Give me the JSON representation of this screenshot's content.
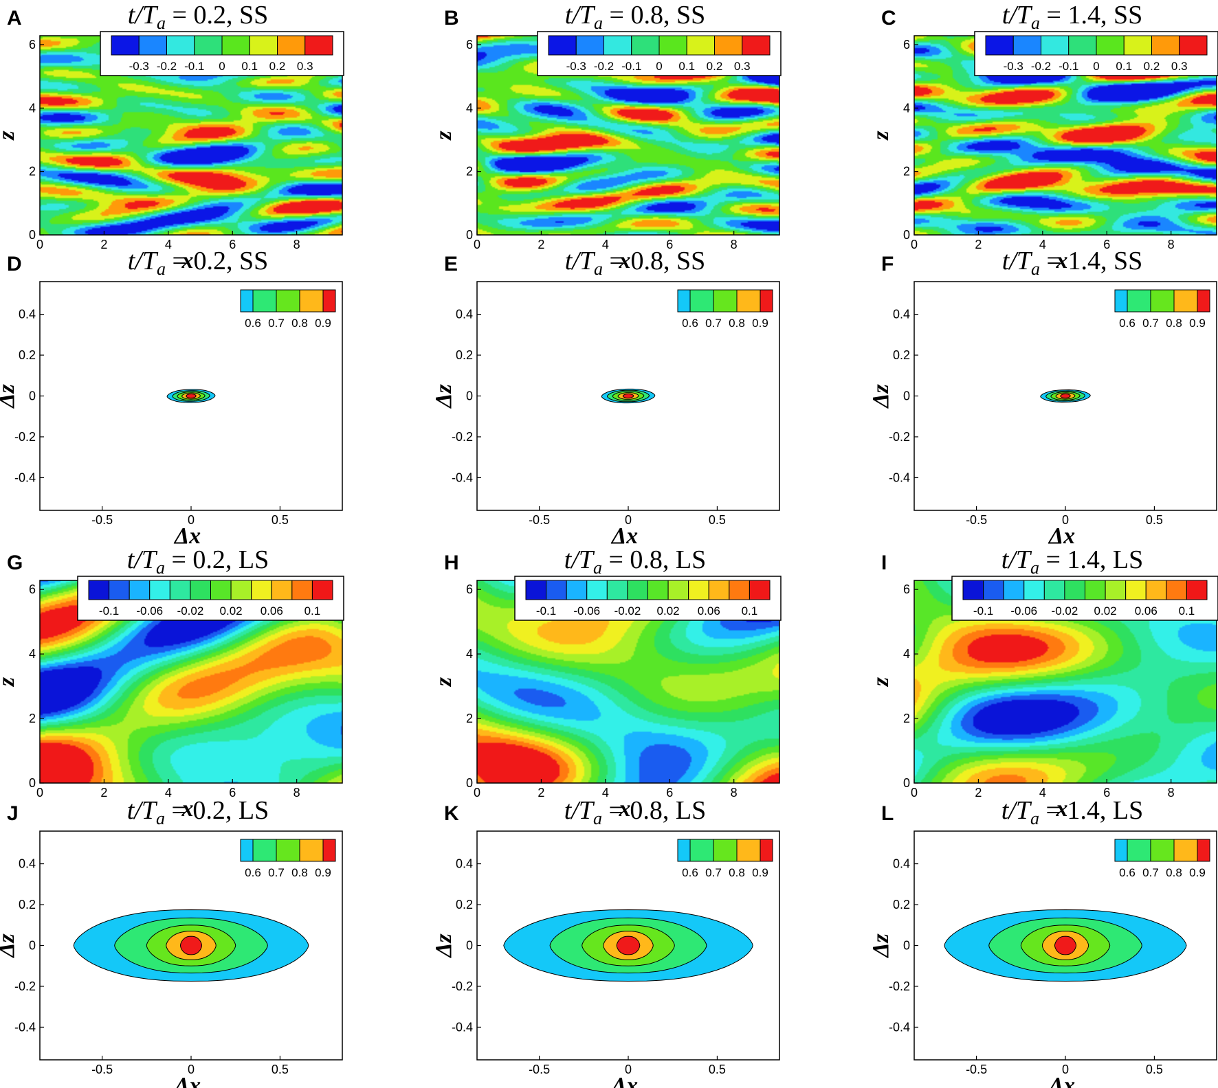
{
  "figure": {
    "panel_count": 12,
    "layout": "4 rows x 3 columns"
  },
  "colors": {
    "ss_levels": [
      "#0b16e6",
      "#1a86ff",
      "#33e8e0",
      "#2ee07a",
      "#5ae61e",
      "#d8f21a",
      "#ff9a0a",
      "#f01a1a"
    ],
    "ls_levels": [
      "#0a14d8",
      "#1a5cf0",
      "#1ab4ff",
      "#33f0e8",
      "#2ee8a0",
      "#2ee060",
      "#58e628",
      "#a8f028",
      "#f0f020",
      "#ffb81a",
      "#ff7a10",
      "#f01818"
    ],
    "corr_levels": [
      "#14c8f8",
      "#2ee874",
      "#66e61e",
      "#ffb81a",
      "#f01a1a"
    ]
  },
  "chart_data": [
    {
      "panel": "A",
      "type": "heatmap",
      "title": "t/Ta = 0.2, SS",
      "title_parts": {
        "prefix": "t/T",
        "sub": "a",
        "suffix": " = 0.2, SS"
      },
      "xlabel": "x",
      "ylabel": "z",
      "xlim": [
        0,
        9.42
      ],
      "ylim": [
        0,
        6.28
      ],
      "xticks": [
        "0",
        "2",
        "4",
        "6",
        "8"
      ],
      "yticks": [
        "0",
        "2",
        "4",
        "6"
      ],
      "colorbar": {
        "labels": [
          "-0.3",
          "-0.2",
          "-0.1",
          "0",
          "0.1",
          "0.2",
          "0.3"
        ],
        "levels": 8
      },
      "field": "small-scale streaks",
      "scale": "SS"
    },
    {
      "panel": "B",
      "type": "heatmap",
      "title": "t/Ta = 0.8, SS",
      "title_parts": {
        "prefix": "t/T",
        "sub": "a",
        "suffix": " = 0.8, SS"
      },
      "xlabel": "x",
      "ylabel": "z",
      "xlim": [
        0,
        9.42
      ],
      "ylim": [
        0,
        6.28
      ],
      "xticks": [
        "0",
        "2",
        "4",
        "6",
        "8"
      ],
      "yticks": [
        "0",
        "2",
        "4",
        "6"
      ],
      "colorbar": {
        "labels": [
          "-0.3",
          "-0.2",
          "-0.1",
          "0",
          "0.1",
          "0.2",
          "0.3"
        ],
        "levels": 8
      },
      "field": "small-scale streaks",
      "scale": "SS"
    },
    {
      "panel": "C",
      "type": "heatmap",
      "title": "t/Ta = 1.4, SS",
      "title_parts": {
        "prefix": "t/T",
        "sub": "a",
        "suffix": " = 1.4, SS"
      },
      "xlabel": "x",
      "ylabel": "z",
      "xlim": [
        0,
        9.42
      ],
      "ylim": [
        0,
        6.28
      ],
      "xticks": [
        "0",
        "2",
        "4",
        "6",
        "8"
      ],
      "yticks": [
        "0",
        "2",
        "4",
        "6"
      ],
      "colorbar": {
        "labels": [
          "-0.3",
          "-0.2",
          "-0.1",
          "0",
          "0.1",
          "0.2",
          "0.3"
        ],
        "levels": 8
      },
      "field": "small-scale streaks",
      "scale": "SS"
    },
    {
      "panel": "D",
      "type": "heatmap",
      "title": "t/Ta = 0.2, SS",
      "title_parts": {
        "prefix": "t/T",
        "sub": "a",
        "suffix": " = 0.2, SS"
      },
      "xlabel": "Δx",
      "ylabel": "Δz",
      "xlim": [
        -0.85,
        0.85
      ],
      "ylim": [
        -0.56,
        0.56
      ],
      "xticks": [
        "-0.5",
        "0",
        "0.5"
      ],
      "yticks": [
        "-0.4",
        "-0.2",
        "0",
        "0.2",
        "0.4"
      ],
      "colorbar": {
        "labels": [
          "0.6",
          "0.7",
          "0.8",
          "0.9"
        ],
        "levels": 5
      },
      "contours": [
        {
          "level": 0.5,
          "rx": 0.135,
          "rz": 0.032,
          "skew": 0.06
        },
        {
          "level": 0.6,
          "rx": 0.105,
          "rz": 0.026,
          "skew": 0.06
        },
        {
          "level": 0.7,
          "rx": 0.078,
          "rz": 0.02,
          "skew": 0.06
        },
        {
          "level": 0.8,
          "rx": 0.052,
          "rz": 0.015,
          "skew": 0.06
        },
        {
          "level": 0.9,
          "rx": 0.028,
          "rz": 0.01,
          "skew": 0.06
        }
      ]
    },
    {
      "panel": "E",
      "type": "heatmap",
      "title": "t/Ta = 0.8, SS",
      "title_parts": {
        "prefix": "t/T",
        "sub": "a",
        "suffix": " = 0.8, SS"
      },
      "xlabel": "Δx",
      "ylabel": "Δz",
      "xlim": [
        -0.85,
        0.85
      ],
      "ylim": [
        -0.56,
        0.56
      ],
      "xticks": [
        "-0.5",
        "0",
        "0.5"
      ],
      "yticks": [
        "-0.4",
        "-0.2",
        "0",
        "0.2",
        "0.4"
      ],
      "colorbar": {
        "labels": [
          "0.6",
          "0.7",
          "0.8",
          "0.9"
        ],
        "levels": 5
      },
      "contours": [
        {
          "level": 0.5,
          "rx": 0.15,
          "rz": 0.034,
          "skew": 0.06
        },
        {
          "level": 0.6,
          "rx": 0.118,
          "rz": 0.028,
          "skew": 0.06
        },
        {
          "level": 0.7,
          "rx": 0.088,
          "rz": 0.022,
          "skew": 0.06
        },
        {
          "level": 0.8,
          "rx": 0.058,
          "rz": 0.016,
          "skew": 0.06
        },
        {
          "level": 0.9,
          "rx": 0.03,
          "rz": 0.01,
          "skew": 0.06
        }
      ]
    },
    {
      "panel": "F",
      "type": "heatmap",
      "title": "t/Ta = 1.4, SS",
      "title_parts": {
        "prefix": "t/T",
        "sub": "a",
        "suffix": " = 1.4, SS"
      },
      "xlabel": "Δx",
      "ylabel": "Δz",
      "xlim": [
        -0.85,
        0.85
      ],
      "ylim": [
        -0.56,
        0.56
      ],
      "xticks": [
        "-0.5",
        "0",
        "0.5"
      ],
      "yticks": [
        "-0.4",
        "-0.2",
        "0",
        "0.2",
        "0.4"
      ],
      "colorbar": {
        "labels": [
          "0.6",
          "0.7",
          "0.8",
          "0.9"
        ],
        "levels": 5
      },
      "contours": [
        {
          "level": 0.5,
          "rx": 0.14,
          "rz": 0.03,
          "skew": 0.07
        },
        {
          "level": 0.6,
          "rx": 0.11,
          "rz": 0.025,
          "skew": 0.07
        },
        {
          "level": 0.7,
          "rx": 0.082,
          "rz": 0.02,
          "skew": 0.07
        },
        {
          "level": 0.8,
          "rx": 0.054,
          "rz": 0.015,
          "skew": 0.07
        },
        {
          "level": 0.9,
          "rx": 0.028,
          "rz": 0.01,
          "skew": 0.07
        }
      ]
    },
    {
      "panel": "G",
      "type": "heatmap",
      "title": "t/Ta = 0.2, LS",
      "title_parts": {
        "prefix": "t/T",
        "sub": "a",
        "suffix": " = 0.2, LS"
      },
      "xlabel": "x",
      "ylabel": "z",
      "xlim": [
        0,
        9.42
      ],
      "ylim": [
        0,
        6.28
      ],
      "xticks": [
        "0",
        "2",
        "4",
        "6",
        "8"
      ],
      "yticks": [
        "0",
        "2",
        "4",
        "6"
      ],
      "colorbar": {
        "labels": [
          "-0.1",
          "-0.06",
          "-0.02",
          "0.02",
          "0.06",
          "0.1"
        ],
        "levels": 12
      },
      "field": "large-scale streaks",
      "scale": "LS"
    },
    {
      "panel": "H",
      "type": "heatmap",
      "title": "t/Ta = 0.8, LS",
      "title_parts": {
        "prefix": "t/T",
        "sub": "a",
        "suffix": " = 0.8, LS"
      },
      "xlabel": "x",
      "ylabel": "z",
      "xlim": [
        0,
        9.42
      ],
      "ylim": [
        0,
        6.28
      ],
      "xticks": [
        "0",
        "2",
        "4",
        "6",
        "8"
      ],
      "yticks": [
        "0",
        "2",
        "4",
        "6"
      ],
      "colorbar": {
        "labels": [
          "-0.1",
          "-0.06",
          "-0.02",
          "0.02",
          "0.06",
          "0.1"
        ],
        "levels": 12
      },
      "field": "large-scale streaks",
      "scale": "LS"
    },
    {
      "panel": "I",
      "type": "heatmap",
      "title": "t/Ta = 1.4, LS",
      "title_parts": {
        "prefix": "t/T",
        "sub": "a",
        "suffix": " = 1.4, LS"
      },
      "xlabel": "x",
      "ylabel": "z",
      "xlim": [
        0,
        9.42
      ],
      "ylim": [
        0,
        6.28
      ],
      "xticks": [
        "0",
        "2",
        "4",
        "6",
        "8"
      ],
      "yticks": [
        "0",
        "2",
        "4",
        "6"
      ],
      "colorbar": {
        "labels": [
          "-0.1",
          "-0.06",
          "-0.02",
          "0.02",
          "0.06",
          "0.1"
        ],
        "levels": 12
      },
      "field": "large-scale streaks",
      "scale": "LS"
    },
    {
      "panel": "J",
      "type": "heatmap",
      "title": "t/Ta = 0.2, LS",
      "title_parts": {
        "prefix": "t/T",
        "sub": "a",
        "suffix": " = 0.2, LS"
      },
      "xlabel": "Δx",
      "ylabel": "Δz",
      "xlim": [
        -0.85,
        0.85
      ],
      "ylim": [
        -0.56,
        0.56
      ],
      "xticks": [
        "-0.5",
        "0",
        "0.5"
      ],
      "yticks": [
        "-0.4",
        "-0.2",
        "0",
        "0.2",
        "0.4"
      ],
      "colorbar": {
        "labels": [
          "0.6",
          "0.7",
          "0.8",
          "0.9"
        ],
        "levels": 5
      },
      "contours": [
        {
          "level": 0.5,
          "rx": 0.66,
          "rz": 0.175,
          "skew": 0.0
        },
        {
          "level": 0.6,
          "rx": 0.43,
          "rz": 0.135,
          "skew": 0.0
        },
        {
          "level": 0.7,
          "rx": 0.25,
          "rz": 0.1,
          "skew": 0.0
        },
        {
          "level": 0.8,
          "rx": 0.14,
          "rz": 0.07,
          "skew": 0.0
        },
        {
          "level": 0.9,
          "rx": 0.06,
          "rz": 0.045,
          "skew": 0.0
        }
      ]
    },
    {
      "panel": "K",
      "type": "heatmap",
      "title": "t/Ta = 0.8, LS",
      "title_parts": {
        "prefix": "t/T",
        "sub": "a",
        "suffix": " = 0.8, LS"
      },
      "xlabel": "Δx",
      "ylabel": "Δz",
      "xlim": [
        -0.85,
        0.85
      ],
      "ylim": [
        -0.56,
        0.56
      ],
      "xticks": [
        "-0.5",
        "0",
        "0.5"
      ],
      "yticks": [
        "-0.4",
        "-0.2",
        "0",
        "0.2",
        "0.4"
      ],
      "colorbar": {
        "labels": [
          "0.6",
          "0.7",
          "0.8",
          "0.9"
        ],
        "levels": 5
      },
      "contours": [
        {
          "level": 0.5,
          "rx": 0.7,
          "rz": 0.175,
          "skew": 0.0
        },
        {
          "level": 0.6,
          "rx": 0.44,
          "rz": 0.135,
          "skew": 0.0
        },
        {
          "level": 0.7,
          "rx": 0.26,
          "rz": 0.1,
          "skew": 0.0
        },
        {
          "level": 0.8,
          "rx": 0.14,
          "rz": 0.07,
          "skew": 0.0
        },
        {
          "level": 0.9,
          "rx": 0.065,
          "rz": 0.045,
          "skew": 0.0
        }
      ]
    },
    {
      "panel": "L",
      "type": "heatmap",
      "title": "t/Ta = 1.4, LS",
      "title_parts": {
        "prefix": "t/T",
        "sub": "a",
        "suffix": " = 1.4, LS"
      },
      "xlabel": "Δx",
      "ylabel": "Δz",
      "xlim": [
        -0.85,
        0.85
      ],
      "ylim": [
        -0.56,
        0.56
      ],
      "xticks": [
        "-0.5",
        "0",
        "0.5"
      ],
      "yticks": [
        "-0.4",
        "-0.2",
        "0",
        "0.2",
        "0.4"
      ],
      "colorbar": {
        "labels": [
          "0.6",
          "0.7",
          "0.8",
          "0.9"
        ],
        "levels": 5
      },
      "contours": [
        {
          "level": 0.5,
          "rx": 0.68,
          "rz": 0.175,
          "skew": 0.0
        },
        {
          "level": 0.6,
          "rx": 0.43,
          "rz": 0.135,
          "skew": 0.0
        },
        {
          "level": 0.7,
          "rx": 0.25,
          "rz": 0.1,
          "skew": 0.0
        },
        {
          "level": 0.8,
          "rx": 0.13,
          "rz": 0.07,
          "skew": 0.0
        },
        {
          "level": 0.9,
          "rx": 0.06,
          "rz": 0.045,
          "skew": 0.0
        }
      ]
    }
  ]
}
